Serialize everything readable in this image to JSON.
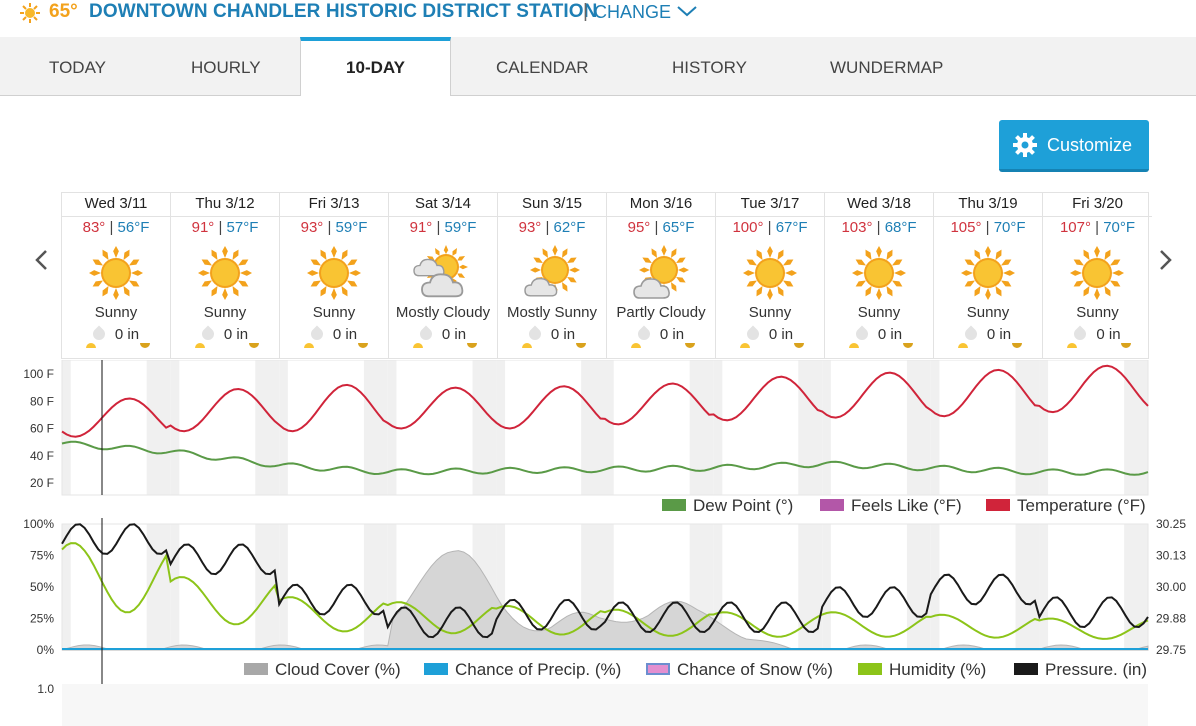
{
  "header": {
    "current_temp": "65°",
    "station": "DOWNTOWN CHANDLER HISTORIC DISTRICT STATION",
    "separator": "|",
    "change_label": "CHANGE"
  },
  "tabs": [
    {
      "label": "TODAY"
    },
    {
      "label": "HOURLY"
    },
    {
      "label": "10-DAY",
      "active": true
    },
    {
      "label": "CALENDAR"
    },
    {
      "label": "HISTORY"
    },
    {
      "label": "WUNDERMAP"
    }
  ],
  "customize_label": "Customize",
  "days": [
    {
      "date": "Wed 3/11",
      "hi": "83°",
      "lo": "56°F",
      "cond": "Sunny",
      "precip": "0 in",
      "icon": "sunny-icon"
    },
    {
      "date": "Thu 3/12",
      "hi": "91°",
      "lo": "57°F",
      "cond": "Sunny",
      "precip": "0 in",
      "icon": "sunny-icon"
    },
    {
      "date": "Fri 3/13",
      "hi": "93°",
      "lo": "59°F",
      "cond": "Sunny",
      "precip": "0 in",
      "icon": "sunny-icon"
    },
    {
      "date": "Sat 3/14",
      "hi": "91°",
      "lo": "59°F",
      "cond": "Mostly Cloudy",
      "precip": "0 in",
      "icon": "mostly-cloudy-icon"
    },
    {
      "date": "Sun 3/15",
      "hi": "93°",
      "lo": "62°F",
      "cond": "Mostly Sunny",
      "precip": "0 in",
      "icon": "mostly-sunny-icon"
    },
    {
      "date": "Mon 3/16",
      "hi": "95°",
      "lo": "65°F",
      "cond": "Partly Cloudy",
      "precip": "0 in",
      "icon": "partly-cloudy-icon"
    },
    {
      "date": "Tue 3/17",
      "hi": "100°",
      "lo": "67°F",
      "cond": "Sunny",
      "precip": "0 in",
      "icon": "sunny-icon"
    },
    {
      "date": "Wed 3/18",
      "hi": "103°",
      "lo": "68°F",
      "cond": "Sunny",
      "precip": "0 in",
      "icon": "sunny-icon"
    },
    {
      "date": "Thu 3/19",
      "hi": "105°",
      "lo": "70°F",
      "cond": "Sunny",
      "precip": "0 in",
      "icon": "sunny-icon"
    },
    {
      "date": "Fri 3/20",
      "hi": "107°",
      "lo": "70°F",
      "cond": "Sunny",
      "precip": "0 in",
      "icon": "sunny-icon"
    }
  ],
  "colors": {
    "temperature": "#d0243a",
    "dew_point": "#5a9a47",
    "feels_like": "#b357a8",
    "cloud_cover": "#a8a8a8",
    "precip": "#1ea0d8",
    "snow": "#e38fd0",
    "humidity": "#8cc419",
    "pressure": "#1a1a1a",
    "accent": "#1ea0d8",
    "link": "#1e7fb5"
  },
  "chart_data": [
    {
      "type": "line",
      "y_axis_ticks": [
        "100 F",
        "80 F",
        "60 F",
        "40 F",
        "20 F"
      ],
      "ylim": [
        20,
        100
      ],
      "legend": [
        "Dew Point (°)",
        "Feels Like (°F)",
        "Temperature (°F)"
      ],
      "x": [
        "Wed 3/11",
        "Thu 3/12",
        "Fri 3/13",
        "Sat 3/14",
        "Sun 3/15",
        "Mon 3/16",
        "Tue 3/17",
        "Wed 3/18",
        "Thu 3/19",
        "Fri 3/20"
      ],
      "series": [
        {
          "name": "Temperature (°F)",
          "daily_highs": [
            82,
            89,
            92,
            90,
            91,
            93,
            98,
            101,
            103,
            106
          ],
          "daily_lows": [
            54,
            58,
            58,
            60,
            60,
            63,
            66,
            68,
            69,
            72
          ]
        },
        {
          "name": "Dew Point (°)",
          "values_approx": [
            49,
            43,
            33,
            28,
            29,
            30,
            31,
            34,
            31,
            28
          ]
        },
        {
          "name": "Feels Like (°F)",
          "values_approx": []
        }
      ]
    },
    {
      "type": "line",
      "y_axis_ticks_left": [
        "100%",
        "75%",
        "50%",
        "25%",
        "0%"
      ],
      "y_axis_ticks_right": [
        "30.25",
        "30.13",
        "30.00",
        "29.88",
        "29.75"
      ],
      "legend": [
        "Cloud Cover (%)",
        "Chance of Precip. (%)",
        "Chance of Snow (%)",
        "Humidity (%)",
        "Pressure. (in)"
      ],
      "series": [
        {
          "name": "Cloud Cover (%)",
          "peak_approx": 78
        },
        {
          "name": "Chance of Precip. (%)",
          "values_approx": [
            0
          ]
        },
        {
          "name": "Chance of Snow (%)",
          "values_approx": [
            0
          ]
        },
        {
          "name": "Humidity (%)",
          "daily_max_approx": [
            85,
            58,
            42,
            38,
            35,
            32,
            30,
            30,
            28,
            25
          ]
        },
        {
          "name": "Pressure. (in)",
          "daily_max_approx": [
            30.25,
            30.17,
            30.01,
            29.92,
            29.95,
            29.94,
            29.94,
            30.0,
            30.05,
            29.96
          ]
        }
      ]
    },
    {
      "type": "line",
      "y_axis_ticks": [
        "1.0"
      ]
    }
  ]
}
